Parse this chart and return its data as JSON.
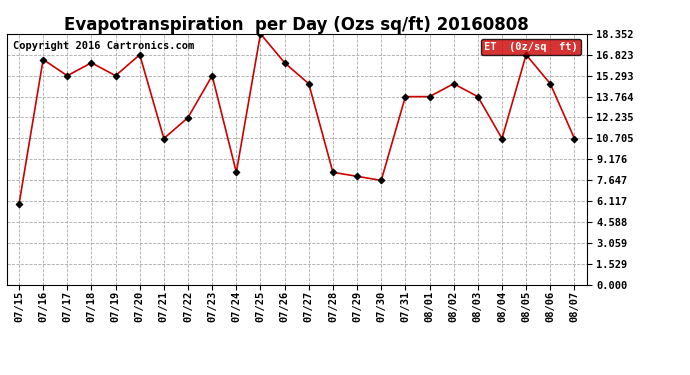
{
  "title": "Evapotranspiration  per Day (Ozs sq/ft) 20160808",
  "copyright_text": "Copyright 2016 Cartronics.com",
  "legend_label": "ET  (0z/sq  ft)",
  "dates": [
    "07/15",
    "07/16",
    "07/17",
    "07/18",
    "07/19",
    "07/20",
    "07/21",
    "07/22",
    "07/23",
    "07/24",
    "07/25",
    "07/26",
    "07/27",
    "07/28",
    "07/29",
    "07/30",
    "07/31",
    "08/01",
    "08/02",
    "08/03",
    "08/04",
    "08/05",
    "08/06",
    "08/07"
  ],
  "values": [
    5.88,
    16.47,
    15.29,
    16.23,
    15.29,
    16.82,
    10.7,
    12.23,
    15.29,
    8.23,
    18.35,
    16.23,
    14.7,
    8.23,
    7.94,
    7.64,
    13.76,
    13.76,
    14.7,
    13.76,
    10.7,
    16.82,
    14.7,
    10.7
  ],
  "yticks": [
    0.0,
    1.529,
    3.059,
    4.588,
    6.117,
    7.647,
    9.176,
    10.705,
    12.235,
    13.764,
    15.293,
    16.823,
    18.352
  ],
  "line_color": "#cc0000",
  "marker_color": "#000000",
  "background_color": "#ffffff",
  "grid_color": "#aaaaaa",
  "legend_bg": "#cc0000",
  "legend_text_color": "#ffffff",
  "title_fontsize": 12,
  "copyright_fontsize": 7.5,
  "ylim": [
    0.0,
    18.352
  ],
  "tick_fontsize": 7.5
}
